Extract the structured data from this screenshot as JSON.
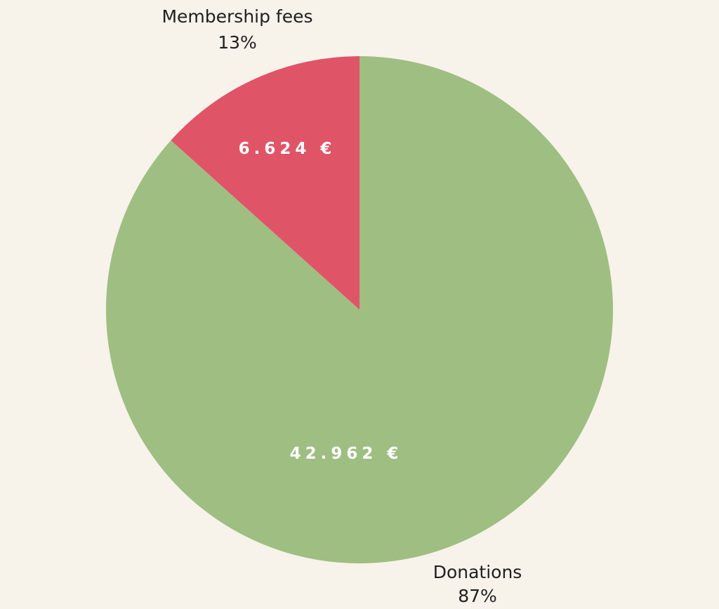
{
  "chart_data": {
    "type": "pie",
    "slices": [
      {
        "label": "Donations",
        "percent_label": "87%",
        "value": 42962,
        "value_label": "42.962 €",
        "percent": 87,
        "color": "#9fbe82"
      },
      {
        "label": "Membership fees",
        "percent_label": "13%",
        "value": 6624,
        "value_label": "6.624 €",
        "percent": 13,
        "color": "#e05468"
      }
    ]
  }
}
